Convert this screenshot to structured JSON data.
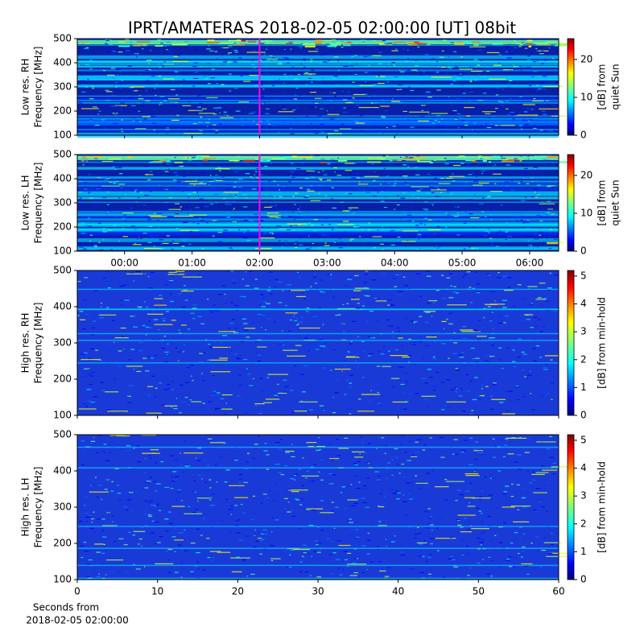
{
  "chart_data": [
    {
      "type": "heatmap",
      "title": "IPRT/AMATERAS 2018-02-05 02:00:00 [UT]   08bit",
      "ylabel": [
        "Low res. RH",
        "Frequency [MHz]"
      ],
      "xlim": [
        -0.7,
        6.43
      ],
      "xticks": [
        0,
        1,
        2,
        3,
        4,
        5,
        6
      ],
      "xticklabels": false,
      "ylim": [
        100,
        500
      ],
      "yticks": [
        100,
        200,
        300,
        400,
        500
      ],
      "clim": [
        0,
        25.5
      ],
      "cticks": [
        0,
        10,
        20
      ],
      "clabel": [
        "[dB] from",
        "quiet Sun"
      ],
      "marker": {
        "value": 2,
        "color": "#ff00ff"
      }
    },
    {
      "type": "heatmap",
      "ylabel": [
        "Low res. LH",
        "Frequency [MHz]"
      ],
      "xlim": [
        -0.7,
        6.43
      ],
      "xticks": [
        {
          "value": 0,
          "label": "00:00"
        },
        {
          "value": 1,
          "label": "01:00"
        },
        {
          "value": 2,
          "label": "02:00"
        },
        {
          "value": 3,
          "label": "03:00"
        },
        {
          "value": 4,
          "label": "04:00"
        },
        {
          "value": 5,
          "label": "05:00"
        },
        {
          "value": 6,
          "label": "06:00"
        }
      ],
      "ylim": [
        100,
        500
      ],
      "yticks": [
        100,
        200,
        300,
        400,
        500
      ],
      "clim": [
        0,
        25.5
      ],
      "cticks": [
        0,
        10,
        20
      ],
      "clabel": [
        "[dB] from",
        "quiet Sun"
      ],
      "marker": {
        "value": 2,
        "color": "#ff00ff"
      }
    },
    {
      "type": "heatmap",
      "ylabel": [
        "High res. RH",
        "Frequency [MHz]"
      ],
      "xlim": [
        0,
        60
      ],
      "xticks": [
        0,
        10,
        20,
        30,
        40,
        50,
        60
      ],
      "xticklabels": false,
      "ylim": [
        100,
        500
      ],
      "yticks": [
        100,
        200,
        300,
        400,
        500
      ],
      "clim": [
        0,
        5.2
      ],
      "cticks": [
        0,
        1,
        2,
        3,
        4,
        5
      ],
      "clabel": [
        "[dB] from min-hold"
      ]
    },
    {
      "type": "heatmap",
      "ylabel": [
        "High res. LH",
        "Frequency [MHz]"
      ],
      "xlim": [
        0,
        60
      ],
      "xticks": [
        0,
        10,
        20,
        30,
        40,
        50,
        60
      ],
      "ylim": [
        100,
        500
      ],
      "yticks": [
        100,
        200,
        300,
        400,
        500
      ],
      "clim": [
        0,
        5.2
      ],
      "cticks": [
        0,
        1,
        2,
        3,
        4,
        5
      ],
      "clabel": [
        "[dB] from min-hold"
      ],
      "xlabel": [
        "Seconds from",
        "2018-02-05 02:00:00"
      ]
    }
  ]
}
